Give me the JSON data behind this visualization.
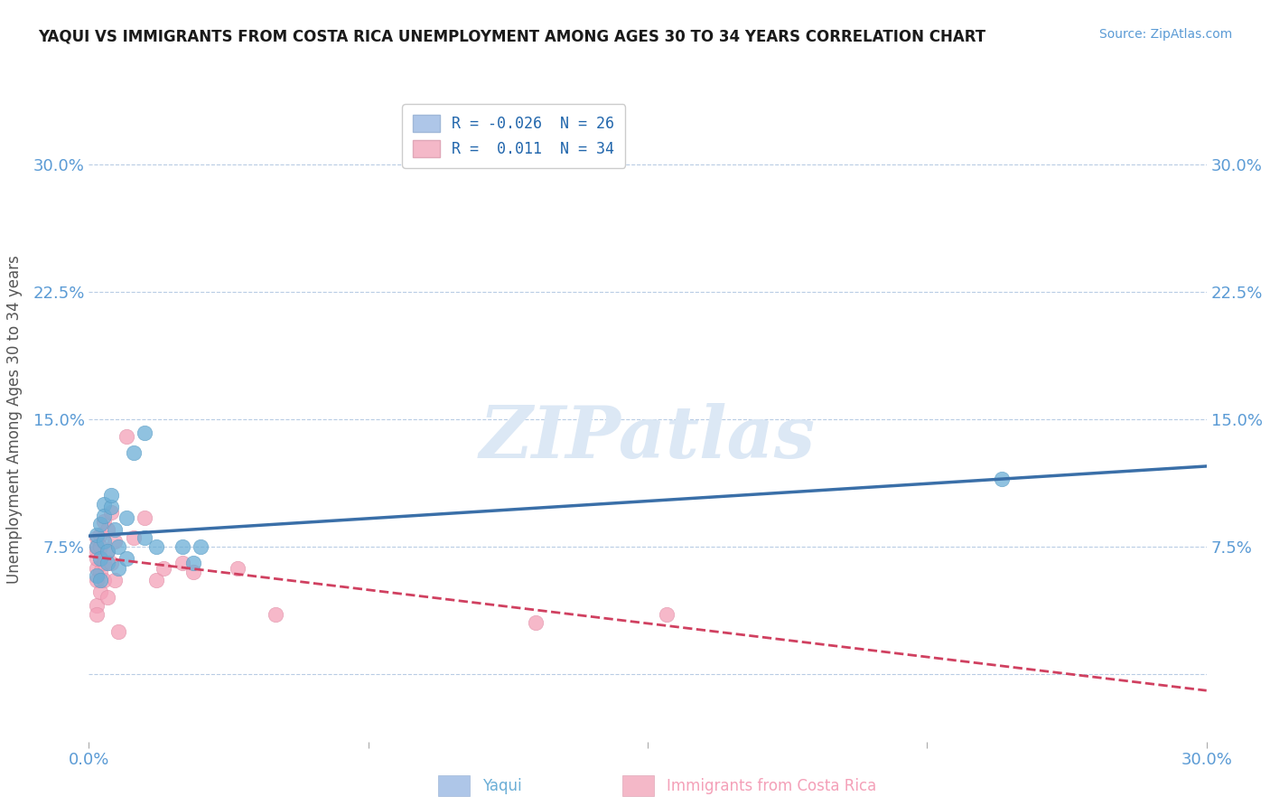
{
  "title": "YAQUI VS IMMIGRANTS FROM COSTA RICA UNEMPLOYMENT AMONG AGES 30 TO 34 YEARS CORRELATION CHART",
  "source": "Source: ZipAtlas.com",
  "ylabel": "Unemployment Among Ages 30 to 34 years",
  "xlim": [
    0.0,
    0.3
  ],
  "ylim": [
    -0.04,
    0.34
  ],
  "yticks": [
    0.0,
    0.075,
    0.15,
    0.225,
    0.3
  ],
  "ytick_labels": [
    "",
    "7.5%",
    "15.0%",
    "22.5%",
    "30.0%"
  ],
  "xticks": [
    0.0,
    0.075,
    0.15,
    0.225,
    0.3
  ],
  "xtick_labels": [
    "0.0%",
    "",
    "",
    "",
    "30.0%"
  ],
  "yaqui_r": -0.026,
  "yaqui_n": 26,
  "cr_r": 0.011,
  "cr_n": 34,
  "yaqui_x": [
    0.002,
    0.002,
    0.002,
    0.003,
    0.003,
    0.003,
    0.004,
    0.004,
    0.004,
    0.005,
    0.005,
    0.006,
    0.006,
    0.007,
    0.008,
    0.008,
    0.01,
    0.01,
    0.012,
    0.015,
    0.015,
    0.018,
    0.025,
    0.028,
    0.03,
    0.245
  ],
  "yaqui_y": [
    0.075,
    0.082,
    0.058,
    0.088,
    0.068,
    0.055,
    0.1,
    0.093,
    0.078,
    0.065,
    0.072,
    0.098,
    0.105,
    0.085,
    0.075,
    0.062,
    0.092,
    0.068,
    0.13,
    0.142,
    0.08,
    0.075,
    0.075,
    0.065,
    0.075,
    0.115
  ],
  "costa_rica_x": [
    0.002,
    0.002,
    0.002,
    0.002,
    0.002,
    0.002,
    0.002,
    0.002,
    0.003,
    0.003,
    0.003,
    0.003,
    0.004,
    0.004,
    0.004,
    0.005,
    0.005,
    0.005,
    0.006,
    0.006,
    0.007,
    0.007,
    0.008,
    0.01,
    0.012,
    0.015,
    0.018,
    0.02,
    0.025,
    0.028,
    0.04,
    0.05,
    0.12,
    0.155
  ],
  "costa_rica_y": [
    0.055,
    0.062,
    0.068,
    0.072,
    0.075,
    0.08,
    0.04,
    0.035,
    0.082,
    0.075,
    0.06,
    0.048,
    0.09,
    0.065,
    0.055,
    0.085,
    0.072,
    0.045,
    0.095,
    0.065,
    0.078,
    0.055,
    0.025,
    0.14,
    0.08,
    0.092,
    0.055,
    0.062,
    0.065,
    0.06,
    0.062,
    0.035,
    0.03,
    0.035
  ],
  "yaqui_color": "#6baed6",
  "yaqui_edge": "#5a9dc5",
  "costa_rica_color": "#f4a0b8",
  "costa_rica_edge": "#e090a8",
  "trend_yaqui_color": "#3a6fa8",
  "trend_cr_color": "#d04060",
  "trend_yaqui_style": "-",
  "trend_cr_style": "--",
  "legend_patch_yaqui": "#aec6e8",
  "legend_patch_cr": "#f4b8c8",
  "background_color": "#ffffff",
  "grid_color": "#b8cce4",
  "watermark_text": "ZIPatlas",
  "watermark_color": "#dce8f5",
  "title_color": "#1a1a1a",
  "source_color": "#5b9bd5",
  "tick_label_color": "#5b9bd5",
  "ylabel_color": "#555555",
  "bottom_yaqui_text": "Yaqui",
  "bottom_cr_text": "Immigrants from Costa Rica"
}
